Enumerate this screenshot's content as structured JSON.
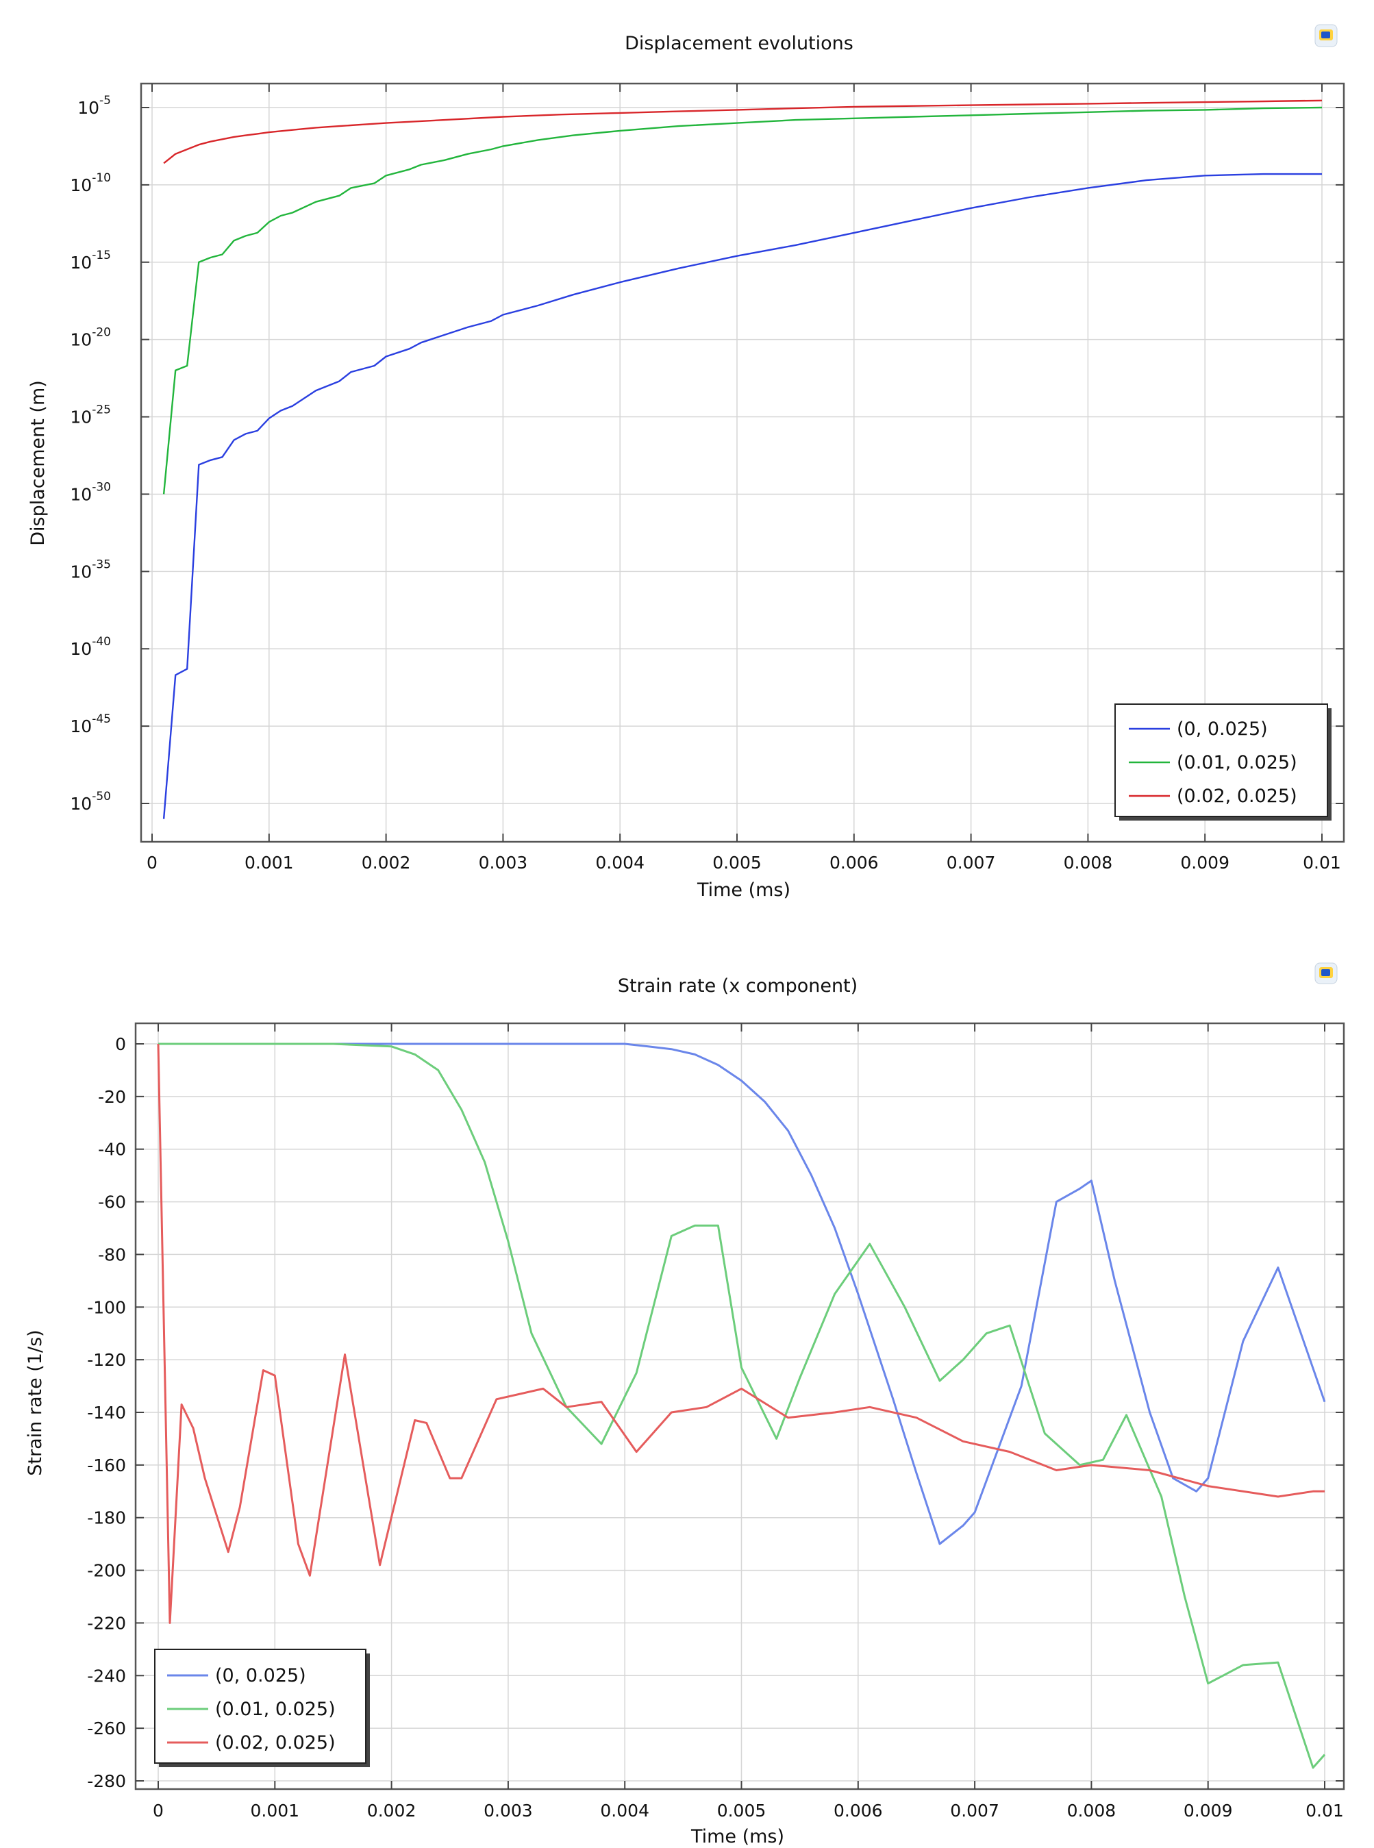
{
  "chart_data": [
    {
      "type": "line",
      "title": "Displacement evolutions",
      "xlabel": "Time (ms)",
      "ylabel": "Displacement (m)",
      "yscale": "log",
      "xlim": [
        0,
        0.01
      ],
      "ylim_exponent": [
        -52.5,
        -3.5
      ],
      "x_ticks": [
        "0",
        "0.001",
        "0.002",
        "0.003",
        "0.004",
        "0.005",
        "0.006",
        "0.007",
        "0.008",
        "0.009",
        "0.01"
      ],
      "y_ticks": [
        {
          "base": "10",
          "exp": "-5",
          "value": -5
        },
        {
          "base": "10",
          "exp": "-10",
          "value": -10
        },
        {
          "base": "10",
          "exp": "-15",
          "value": -15
        },
        {
          "base": "10",
          "exp": "-20",
          "value": -20
        },
        {
          "base": "10",
          "exp": "-25",
          "value": -25
        },
        {
          "base": "10",
          "exp": "-30",
          "value": -30
        },
        {
          "base": "10",
          "exp": "-35",
          "value": -35
        },
        {
          "base": "10",
          "exp": "-40",
          "value": -40
        },
        {
          "base": "10",
          "exp": "-45",
          "value": -45
        },
        {
          "base": "10",
          "exp": "-50",
          "value": -50
        }
      ],
      "grid": true,
      "legend_position": "bottom-right",
      "series": [
        {
          "name": "(0, 0.025)",
          "color": "#2a3fe0",
          "x": [
            0.0001,
            0.0002,
            0.0003,
            0.0004,
            0.0005,
            0.0006,
            0.0007,
            0.0008,
            0.0009,
            0.001,
            0.0011,
            0.0012,
            0.0014,
            0.0016,
            0.0017,
            0.0019,
            0.002,
            0.0022,
            0.0023,
            0.0025,
            0.0027,
            0.0029,
            0.003,
            0.0033,
            0.0036,
            0.004,
            0.0045,
            0.005,
            0.0055,
            0.006,
            0.0065,
            0.007,
            0.0075,
            0.008,
            0.0085,
            0.009,
            0.0095,
            0.01
          ],
          "y_log10": [
            -51.0,
            -41.7,
            -41.3,
            -28.1,
            -27.8,
            -27.6,
            -26.5,
            -26.1,
            -25.9,
            -25.1,
            -24.6,
            -24.3,
            -23.3,
            -22.7,
            -22.1,
            -21.7,
            -21.1,
            -20.6,
            -20.2,
            -19.7,
            -19.2,
            -18.8,
            -18.4,
            -17.8,
            -17.1,
            -16.3,
            -15.4,
            -14.6,
            -13.9,
            -13.1,
            -12.3,
            -11.5,
            -10.8,
            -10.2,
            -9.7,
            -9.4,
            -9.3,
            -9.3
          ]
        },
        {
          "name": "(0.01, 0.025)",
          "color": "#22b53c",
          "x": [
            0.0001,
            0.0002,
            0.0003,
            0.0004,
            0.0005,
            0.0006,
            0.0007,
            0.0008,
            0.0009,
            0.001,
            0.0011,
            0.0012,
            0.0014,
            0.0016,
            0.0017,
            0.0019,
            0.002,
            0.0022,
            0.0023,
            0.0025,
            0.0027,
            0.0029,
            0.003,
            0.0033,
            0.0036,
            0.004,
            0.0045,
            0.005,
            0.0055,
            0.006,
            0.0065,
            0.007,
            0.0075,
            0.008,
            0.0085,
            0.009,
            0.0095,
            0.01
          ],
          "y_log10": [
            -30.0,
            -22.0,
            -21.7,
            -15.0,
            -14.7,
            -14.5,
            -13.6,
            -13.3,
            -13.1,
            -12.4,
            -12.0,
            -11.8,
            -11.1,
            -10.7,
            -10.2,
            -9.9,
            -9.4,
            -9.0,
            -8.7,
            -8.4,
            -8.0,
            -7.7,
            -7.5,
            -7.1,
            -6.8,
            -6.5,
            -6.2,
            -6.0,
            -5.8,
            -5.7,
            -5.6,
            -5.5,
            -5.4,
            -5.3,
            -5.2,
            -5.15,
            -5.05,
            -5.0
          ]
        },
        {
          "name": "(0.02, 0.025)",
          "color": "#d8262a",
          "x": [
            0.0001,
            0.0002,
            0.0003,
            0.0004,
            0.0005,
            0.0006,
            0.0007,
            0.0008,
            0.0009,
            0.001,
            0.0012,
            0.0014,
            0.0016,
            0.0018,
            0.002,
            0.0025,
            0.003,
            0.0035,
            0.004,
            0.0045,
            0.005,
            0.0055,
            0.006,
            0.0065,
            0.007,
            0.0075,
            0.008,
            0.0085,
            0.009,
            0.0095,
            0.01
          ],
          "y_log10": [
            -8.6,
            -8.0,
            -7.7,
            -7.4,
            -7.2,
            -7.05,
            -6.9,
            -6.8,
            -6.7,
            -6.6,
            -6.45,
            -6.3,
            -6.2,
            -6.1,
            -6.0,
            -5.8,
            -5.6,
            -5.45,
            -5.35,
            -5.25,
            -5.15,
            -5.05,
            -4.95,
            -4.9,
            -4.85,
            -4.8,
            -4.75,
            -4.7,
            -4.65,
            -4.6,
            -4.55
          ]
        }
      ]
    },
    {
      "type": "line",
      "title": "Strain rate (x component)",
      "xlabel": "Time (ms)",
      "ylabel": "Strain rate (1/s)",
      "xlim": [
        0,
        0.01
      ],
      "ylim": [
        -280,
        0
      ],
      "x_ticks": [
        "0",
        "0.001",
        "0.002",
        "0.003",
        "0.004",
        "0.005",
        "0.006",
        "0.007",
        "0.008",
        "0.009",
        "0.01"
      ],
      "y_ticks": [
        "0",
        "-20",
        "-40",
        "-60",
        "-80",
        "-100",
        "-120",
        "-140",
        "-160",
        "-180",
        "-200",
        "-220",
        "-240",
        "-260",
        "-280"
      ],
      "grid": true,
      "legend_position": "bottom-left",
      "series": [
        {
          "name": "(0, 0.025)",
          "color": "#6a86ea",
          "x": [
            0,
            0.001,
            0.002,
            0.003,
            0.004,
            0.0042,
            0.0044,
            0.0046,
            0.0048,
            0.005,
            0.0052,
            0.0054,
            0.0056,
            0.0058,
            0.006,
            0.0063,
            0.0065,
            0.0067,
            0.0069,
            0.007,
            0.0074,
            0.0077,
            0.0079,
            0.008,
            0.0082,
            0.0085,
            0.0087,
            0.0089,
            0.009,
            0.0093,
            0.0096,
            0.01
          ],
          "y": [
            0,
            0,
            0,
            0,
            0,
            -1,
            -2,
            -4,
            -8,
            -14,
            -22,
            -33,
            -50,
            -70,
            -95,
            -135,
            -163,
            -190,
            -183,
            -178,
            -130,
            -60,
            -55,
            -52,
            -90,
            -140,
            -165,
            -170,
            -165,
            -113,
            -85,
            -136
          ]
        },
        {
          "name": "(0.01, 0.025)",
          "color": "#6ccd7b",
          "x": [
            0,
            0.001,
            0.0015,
            0.002,
            0.0022,
            0.0024,
            0.0026,
            0.0028,
            0.003,
            0.0032,
            0.0035,
            0.0038,
            0.0041,
            0.0044,
            0.0046,
            0.0048,
            0.005,
            0.0053,
            0.0055,
            0.0058,
            0.0061,
            0.0064,
            0.0067,
            0.0069,
            0.0071,
            0.0073,
            0.0076,
            0.0079,
            0.0081,
            0.0083,
            0.0086,
            0.0088,
            0.009,
            0.0093,
            0.0096,
            0.0099,
            0.01
          ],
          "y": [
            0,
            0,
            0,
            -1,
            -4,
            -10,
            -25,
            -45,
            -75,
            -110,
            -138,
            -152,
            -125,
            -73,
            -69,
            -69,
            -123,
            -150,
            -127,
            -95,
            -76,
            -100,
            -128,
            -120,
            -110,
            -107,
            -148,
            -160,
            -158,
            -141,
            -172,
            -210,
            -243,
            -236,
            -235,
            -275,
            -270
          ]
        },
        {
          "name": "(0.02, 0.025)",
          "color": "#e55c5c",
          "x": [
            0,
            0.0001,
            0.0002,
            0.0003,
            0.0004,
            0.0006,
            0.0007,
            0.0009,
            0.001,
            0.0012,
            0.0013,
            0.0016,
            0.0019,
            0.0022,
            0.0023,
            0.0025,
            0.0026,
            0.0029,
            0.0031,
            0.0033,
            0.0035,
            0.0038,
            0.0041,
            0.0044,
            0.0047,
            0.005,
            0.0054,
            0.0058,
            0.0061,
            0.0065,
            0.0069,
            0.0073,
            0.0077,
            0.008,
            0.0085,
            0.009,
            0.0096,
            0.0099,
            0.01
          ],
          "y": [
            0,
            -220,
            -137,
            -146,
            -165,
            -193,
            -176,
            -124,
            -126,
            -190,
            -202,
            -118,
            -198,
            -143,
            -144,
            -165,
            -165,
            -135,
            -133,
            -131,
            -138,
            -136,
            -155,
            -140,
            -138,
            -131,
            -142,
            -140,
            -138,
            -142,
            -151,
            -155,
            -162,
            -160,
            -162,
            -168,
            -172,
            -170,
            -170
          ]
        }
      ]
    }
  ]
}
